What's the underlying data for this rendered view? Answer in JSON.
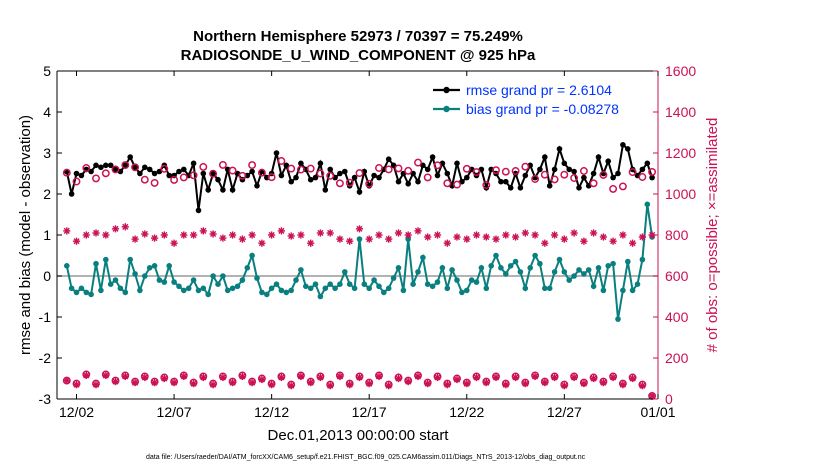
{
  "chart_data": {
    "type": "line",
    "title": "Northern Hemisphere 52973 / 70397 = 75.249%",
    "subtitle": "RADIOSONDE_U_WIND_COMPONENT @ 925 hPa",
    "xlabel": "Dec.01,2013 00:00:00 start",
    "ylabel_left": "rmse and bias (model - observation)",
    "ylabel_right": "# of obs: o=possible; ×=assimilated",
    "ylim_left": [
      -3,
      5
    ],
    "ylim_right": [
      0,
      1600
    ],
    "xlim": [
      0.5,
      31.3
    ],
    "x_ticks": [
      1.5,
      6.5,
      11.5,
      16.5,
      21.5,
      26.5,
      31.5
    ],
    "x_tick_labels": [
      "12/02",
      "12/07",
      "12/12",
      "12/17",
      "12/22",
      "12/27",
      "01/01"
    ],
    "y_ticks_left": [
      -3,
      -2,
      -1,
      0,
      1,
      2,
      3,
      4,
      5
    ],
    "y_tick_labels_left": [
      "-3",
      "-2",
      "-1",
      "0",
      "1",
      "2",
      "3",
      "4",
      "5"
    ],
    "y_ticks_right": [
      0,
      200,
      400,
      600,
      800,
      1000,
      1200,
      1400,
      1600
    ],
    "y_tick_labels_right": [
      "0",
      "200",
      "400",
      "600",
      "800",
      "1000",
      "1200",
      "1400",
      "1600"
    ],
    "zero_line": 0,
    "footnote": "data file: /Users/raeder/DAI/ATM_forcXX/CAM6_setup/f.e21.FHIST_BGC.f09_025.CAM6assim.011/Diags_NTrS_2013-12/obs_diag_output.nc",
    "colors": {
      "rmse": "#000000",
      "bias": "#0a7f7f",
      "obs": "#cc1155",
      "zero": "#999999",
      "legend_text": "#0033ff"
    },
    "series": [
      {
        "name": "rmse grand pr = 2.6104",
        "legend": "rmse grand pr = 2.6104",
        "axis": "left",
        "x": [
          1.0,
          1.25,
          1.5,
          1.75,
          2.0,
          2.25,
          2.5,
          2.75,
          3.0,
          3.25,
          3.5,
          3.75,
          4.0,
          4.25,
          4.5,
          4.75,
          5.0,
          5.25,
          5.5,
          5.75,
          6.0,
          6.25,
          6.5,
          6.75,
          7.0,
          7.25,
          7.5,
          7.75,
          8.0,
          8.25,
          8.5,
          8.75,
          9.0,
          9.25,
          9.5,
          9.75,
          10.0,
          10.25,
          10.5,
          10.75,
          11.0,
          11.25,
          11.5,
          11.75,
          12.0,
          12.25,
          12.5,
          12.75,
          13.0,
          13.25,
          13.5,
          13.75,
          14.0,
          14.25,
          14.5,
          14.75,
          15.0,
          15.25,
          15.5,
          15.75,
          16.0,
          16.25,
          16.5,
          16.75,
          17.0,
          17.25,
          17.5,
          17.75,
          18.0,
          18.25,
          18.5,
          18.75,
          19.0,
          19.25,
          19.5,
          19.75,
          20.0,
          20.25,
          20.5,
          20.75,
          21.0,
          21.25,
          21.5,
          21.75,
          22.0,
          22.25,
          22.5,
          22.75,
          23.0,
          23.25,
          23.5,
          23.75,
          24.0,
          24.25,
          24.5,
          24.75,
          25.0,
          25.25,
          25.5,
          25.75,
          26.0,
          26.25,
          26.5,
          26.75,
          27.0,
          27.25,
          27.5,
          27.75,
          28.0,
          28.25,
          28.5,
          28.75,
          29.0,
          29.25,
          29.5,
          29.75,
          30.0,
          30.25,
          30.5,
          30.75,
          31.0
        ],
        "values": [
          2.55,
          2.0,
          2.5,
          2.45,
          2.6,
          2.55,
          2.7,
          2.65,
          2.7,
          2.7,
          2.6,
          2.55,
          2.7,
          2.9,
          2.65,
          2.5,
          2.65,
          2.6,
          2.5,
          2.55,
          2.7,
          2.45,
          2.45,
          2.55,
          2.6,
          2.45,
          2.75,
          1.6,
          2.5,
          2.1,
          2.5,
          2.35,
          2.1,
          2.6,
          2.1,
          2.5,
          2.35,
          2.45,
          2.55,
          2.2,
          2.55,
          2.4,
          2.5,
          3.0,
          2.45,
          2.7,
          2.3,
          2.4,
          2.75,
          2.6,
          2.35,
          2.4,
          2.75,
          2.1,
          2.6,
          2.4,
          2.5,
          2.55,
          2.2,
          2.4,
          2.05,
          2.55,
          2.2,
          2.45,
          2.4,
          2.6,
          2.85,
          2.7,
          2.3,
          2.5,
          2.25,
          2.5,
          2.3,
          2.7,
          2.6,
          2.9,
          2.45,
          2.75,
          2.5,
          2.2,
          2.75,
          2.3,
          2.4,
          2.6,
          2.45,
          2.6,
          2.15,
          2.6,
          2.5,
          2.3,
          2.3,
          2.15,
          2.5,
          2.15,
          2.45,
          2.7,
          2.4,
          2.6,
          2.9,
          2.2,
          2.6,
          3.1,
          2.75,
          2.6,
          2.55,
          2.15,
          2.4,
          2.2,
          2.5,
          2.9,
          2.5,
          2.8,
          2.4,
          2.5,
          3.2,
          3.1,
          2.6,
          2.45,
          2.6,
          2.75,
          2.4
        ]
      },
      {
        "name": "bias grand pr = -0.08278",
        "legend": "bias grand pr = -0.08278",
        "axis": "left",
        "x": [
          1.0,
          1.25,
          1.5,
          1.75,
          2.0,
          2.25,
          2.5,
          2.75,
          3.0,
          3.25,
          3.5,
          3.75,
          4.0,
          4.25,
          4.5,
          4.75,
          5.0,
          5.25,
          5.5,
          5.75,
          6.0,
          6.25,
          6.5,
          6.75,
          7.0,
          7.25,
          7.5,
          7.75,
          8.0,
          8.25,
          8.5,
          8.75,
          9.0,
          9.25,
          9.5,
          9.75,
          10.0,
          10.25,
          10.5,
          10.75,
          11.0,
          11.25,
          11.5,
          11.75,
          12.0,
          12.25,
          12.5,
          12.75,
          13.0,
          13.25,
          13.5,
          13.75,
          14.0,
          14.25,
          14.5,
          14.75,
          15.0,
          15.25,
          15.5,
          15.75,
          16.0,
          16.25,
          16.5,
          16.75,
          17.0,
          17.25,
          17.5,
          17.75,
          18.0,
          18.25,
          18.5,
          18.75,
          19.0,
          19.25,
          19.5,
          19.75,
          20.0,
          20.25,
          20.5,
          20.75,
          21.0,
          21.25,
          21.5,
          21.75,
          22.0,
          22.25,
          22.5,
          22.75,
          23.0,
          23.25,
          23.5,
          23.75,
          24.0,
          24.25,
          24.5,
          24.75,
          25.0,
          25.25,
          25.5,
          25.75,
          26.0,
          26.25,
          26.5,
          26.75,
          27.0,
          27.25,
          27.5,
          27.75,
          28.0,
          28.25,
          28.5,
          28.75,
          29.0,
          29.25,
          29.5,
          29.75,
          30.0,
          30.25,
          30.5,
          30.75,
          31.0
        ],
        "values": [
          0.25,
          -0.3,
          -0.4,
          -0.3,
          -0.4,
          -0.45,
          0.3,
          -0.35,
          0.4,
          -0.2,
          -0.1,
          -0.3,
          -0.4,
          0.4,
          0.05,
          -0.35,
          0.0,
          0.2,
          0.25,
          -0.1,
          -0.15,
          0.25,
          -0.15,
          -0.25,
          -0.35,
          -0.3,
          -0.1,
          -0.35,
          -0.3,
          -0.45,
          0.0,
          -0.2,
          0.0,
          -0.35,
          -0.3,
          -0.25,
          -0.1,
          0.2,
          0.5,
          -0.05,
          -0.4,
          -0.45,
          -0.3,
          -0.2,
          -0.35,
          -0.4,
          -0.35,
          -0.1,
          0.15,
          -0.25,
          -0.3,
          -0.2,
          -0.5,
          -0.3,
          -0.2,
          -0.3,
          -0.2,
          0.1,
          -0.2,
          -0.3,
          0.9,
          -0.2,
          -0.3,
          -0.1,
          -0.25,
          -0.4,
          -0.3,
          -0.05,
          0.2,
          -0.35,
          0.9,
          -0.2,
          0.1,
          0.45,
          -0.2,
          -0.25,
          -0.15,
          0.2,
          -0.3,
          0.15,
          -0.1,
          -0.4,
          -0.35,
          -0.1,
          -0.15,
          0.2,
          -0.3,
          0.25,
          0.5,
          0.2,
          0.05,
          0.25,
          0.35,
          0.1,
          -0.3,
          0.2,
          0.5,
          0.3,
          -0.3,
          -0.3,
          0.1,
          0.4,
          0.1,
          -0.1,
          0.0,
          0.15,
          0.05,
          0.15,
          -0.25,
          0.2,
          -0.35,
          0.25,
          0.3,
          -1.05,
          -0.35,
          0.35,
          -0.35,
          -0.2,
          0.4,
          1.75,
          0.95
        ]
      },
      {
        "name": "obs possible (o)",
        "axis": "right",
        "x": [
          1.0,
          1.5,
          2.0,
          2.5,
          3.0,
          3.5,
          4.0,
          4.5,
          5.0,
          5.5,
          6.0,
          6.5,
          7.0,
          7.5,
          8.0,
          8.5,
          9.0,
          9.5,
          10.0,
          10.5,
          11.0,
          11.5,
          12.0,
          12.5,
          13.0,
          13.5,
          14.0,
          14.5,
          15.0,
          15.5,
          16.0,
          16.5,
          17.0,
          17.5,
          18.0,
          18.5,
          19.0,
          19.5,
          20.0,
          20.5,
          21.0,
          21.5,
          22.0,
          22.5,
          23.0,
          23.5,
          24.0,
          24.5,
          25.0,
          25.5,
          26.0,
          26.5,
          27.0,
          27.5,
          28.0,
          28.5,
          29.0,
          29.5,
          30.0,
          30.5,
          31.0
        ],
        "values": [
          1104,
          1061,
          1127,
          1076,
          1101,
          1120,
          1141,
          1130,
          1070,
          1054,
          1123,
          1069,
          1081,
          1091,
          1132,
          1099,
          1142,
          1114,
          1089,
          1141,
          1104,
          1082,
          1161,
          1124,
          1119,
          1124,
          1100,
          1089,
          1052,
          1055,
          1102,
          1050,
          1127,
          1120,
          1125,
          1113,
          1153,
          1081,
          1140,
          1052,
          1046,
          1123,
          1107,
          1044,
          1116,
          1109,
          1112,
          1133,
          1073,
          1094,
          1071,
          1094,
          1078,
          1112,
          1052,
          1093,
          1025,
          1037,
          1107,
          1083,
          1108
        ]
      },
      {
        "name": "obs assimilated (×)",
        "axis": "right",
        "x": [
          1.0,
          1.5,
          2.0,
          2.5,
          3.0,
          3.5,
          4.0,
          4.5,
          5.0,
          5.5,
          6.0,
          6.5,
          7.0,
          7.5,
          8.0,
          8.5,
          9.0,
          9.5,
          10.0,
          10.5,
          11.0,
          11.5,
          12.0,
          12.5,
          13.0,
          13.5,
          14.0,
          14.5,
          15.0,
          15.5,
          16.0,
          16.5,
          17.0,
          17.5,
          18.0,
          18.5,
          19.0,
          19.5,
          20.0,
          20.5,
          21.0,
          21.5,
          22.0,
          22.5,
          23.0,
          23.5,
          24.0,
          24.5,
          25.0,
          25.5,
          26.0,
          26.5,
          27.0,
          27.5,
          28.0,
          28.5,
          29.0,
          29.5,
          30.0,
          30.5,
          31.0
        ],
        "values": [
          820,
          770,
          800,
          810,
          800,
          830,
          840,
          780,
          805,
          785,
          800,
          760,
          800,
          800,
          820,
          805,
          785,
          800,
          780,
          800,
          760,
          800,
          820,
          795,
          800,
          760,
          810,
          810,
          780,
          770,
          830,
          780,
          800,
          780,
          810,
          800,
          820,
          790,
          800,
          760,
          790,
          780,
          800,
          790,
          780,
          800,
          790,
          810,
          800,
          760,
          800,
          780,
          810,
          770,
          810,
          790,
          770,
          800,
          760,
          790,
          800
        ]
      },
      {
        "name": "obs possible (o) lower",
        "axis": "right",
        "x": [
          1.0,
          1.5,
          2.0,
          2.5,
          3.0,
          3.5,
          4.0,
          4.5,
          5.0,
          5.5,
          6.0,
          6.5,
          7.0,
          7.5,
          8.0,
          8.5,
          9.0,
          9.5,
          10.0,
          10.5,
          11.0,
          11.5,
          12.0,
          12.5,
          13.0,
          13.5,
          14.0,
          14.5,
          15.0,
          15.5,
          16.0,
          16.5,
          17.0,
          17.5,
          18.0,
          18.5,
          19.0,
          19.5,
          20.0,
          20.5,
          21.0,
          21.5,
          22.0,
          22.5,
          23.0,
          23.5,
          24.0,
          24.5,
          25.0,
          25.5,
          26.0,
          26.5,
          27.0,
          27.5,
          28.0,
          28.5,
          29.0,
          29.5,
          30.0,
          30.5,
          31.0
        ],
        "values": [
          90,
          75,
          120,
          75,
          120,
          90,
          115,
          85,
          110,
          85,
          105,
          85,
          115,
          80,
          110,
          75,
          110,
          85,
          115,
          85,
          100,
          75,
          110,
          70,
          115,
          85,
          110,
          70,
          115,
          75,
          110,
          80,
          115,
          70,
          105,
          90,
          115,
          80,
          110,
          75,
          100,
          80,
          110,
          85,
          110,
          75,
          110,
          80,
          115,
          85,
          110,
          70,
          110,
          80,
          105,
          85,
          110,
          75,
          105,
          70,
          15
        ]
      },
      {
        "name": "obs assimilated (×) lower",
        "axis": "right",
        "x": [
          1.0,
          1.5,
          2.0,
          2.5,
          3.0,
          3.5,
          4.0,
          4.5,
          5.0,
          5.5,
          6.0,
          6.5,
          7.0,
          7.5,
          8.0,
          8.5,
          9.0,
          9.5,
          10.0,
          10.5,
          11.0,
          11.5,
          12.0,
          12.5,
          13.0,
          13.5,
          14.0,
          14.5,
          15.0,
          15.5,
          16.0,
          16.5,
          17.0,
          17.5,
          18.0,
          18.5,
          19.0,
          19.5,
          20.0,
          20.5,
          21.0,
          21.5,
          22.0,
          22.5,
          23.0,
          23.5,
          24.0,
          24.5,
          25.0,
          25.5,
          26.0,
          26.5,
          27.0,
          27.5,
          28.0,
          28.5,
          29.0,
          29.5,
          30.0,
          30.5,
          31.0
        ],
        "values": [
          90,
          70,
          115,
          70,
          115,
          85,
          110,
          80,
          105,
          80,
          100,
          80,
          110,
          75,
          105,
          70,
          105,
          80,
          110,
          80,
          95,
          70,
          105,
          65,
          110,
          80,
          105,
          65,
          110,
          70,
          105,
          75,
          110,
          65,
          100,
          85,
          110,
          75,
          105,
          70,
          95,
          75,
          105,
          80,
          105,
          70,
          105,
          75,
          110,
          80,
          105,
          65,
          105,
          75,
          100,
          80,
          105,
          70,
          100,
          65,
          15
        ]
      }
    ]
  }
}
